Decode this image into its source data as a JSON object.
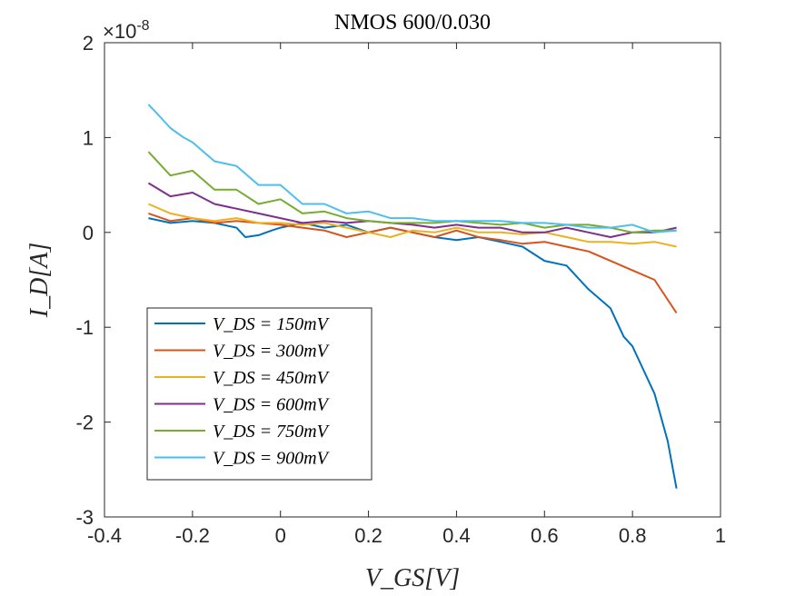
{
  "chart_data": {
    "type": "line",
    "title": "NMOS 600/0.030",
    "xlabel": "V_GS[V]",
    "ylabel": "I_D[A]",
    "xlim": [
      -0.4,
      1.0
    ],
    "ylim": [
      -3,
      2
    ],
    "y_exponent_label": "×10",
    "y_exponent_power": "-8",
    "x_ticks": [
      "-0.4",
      "-0.2",
      "0",
      "0.2",
      "0.4",
      "0.6",
      "0.8",
      "1"
    ],
    "y_ticks": [
      "-3",
      "-2",
      "-1",
      "0",
      "1",
      "2"
    ],
    "grid": false,
    "legend_position": "bottom-left",
    "series": [
      {
        "name": "V_DS = 150mV",
        "color": "#0072BD",
        "x": [
          -0.3,
          -0.25,
          -0.2,
          -0.15,
          -0.1,
          -0.08,
          -0.05,
          -0.02,
          0.0,
          0.05,
          0.1,
          0.15,
          0.2,
          0.25,
          0.3,
          0.35,
          0.4,
          0.45,
          0.5,
          0.55,
          0.6,
          0.65,
          0.7,
          0.75,
          0.78,
          0.8,
          0.82,
          0.85,
          0.88,
          0.9
        ],
        "y": [
          0.15,
          0.1,
          0.12,
          0.1,
          0.05,
          -0.05,
          -0.03,
          0.02,
          0.05,
          0.1,
          0.05,
          0.08,
          0.0,
          0.05,
          0.0,
          -0.05,
          -0.08,
          -0.05,
          -0.1,
          -0.15,
          -0.3,
          -0.35,
          -0.6,
          -0.8,
          -1.1,
          -1.2,
          -1.4,
          -1.7,
          -2.2,
          -2.7
        ]
      },
      {
        "name": "V_DS = 300mV",
        "color": "#D95319",
        "x": [
          -0.3,
          -0.25,
          -0.2,
          -0.15,
          -0.1,
          -0.05,
          0.0,
          0.05,
          0.1,
          0.15,
          0.2,
          0.25,
          0.3,
          0.35,
          0.4,
          0.45,
          0.5,
          0.55,
          0.6,
          0.65,
          0.7,
          0.75,
          0.8,
          0.85,
          0.9
        ],
        "y": [
          0.2,
          0.12,
          0.15,
          0.1,
          0.12,
          0.1,
          0.08,
          0.05,
          0.02,
          -0.05,
          0.0,
          0.05,
          0.0,
          -0.05,
          0.02,
          -0.05,
          -0.08,
          -0.12,
          -0.1,
          -0.15,
          -0.2,
          -0.3,
          -0.4,
          -0.5,
          -0.85
        ]
      },
      {
        "name": "V_DS = 450mV",
        "color": "#EDB120",
        "x": [
          -0.3,
          -0.25,
          -0.2,
          -0.15,
          -0.1,
          -0.05,
          0.0,
          0.05,
          0.1,
          0.15,
          0.2,
          0.25,
          0.3,
          0.35,
          0.4,
          0.45,
          0.5,
          0.55,
          0.6,
          0.65,
          0.7,
          0.75,
          0.8,
          0.85,
          0.9
        ],
        "y": [
          0.3,
          0.2,
          0.15,
          0.12,
          0.15,
          0.1,
          0.1,
          0.08,
          0.1,
          0.05,
          0.0,
          -0.05,
          0.02,
          0.0,
          0.05,
          0.0,
          0.0,
          -0.02,
          0.0,
          -0.05,
          -0.1,
          -0.1,
          -0.12,
          -0.1,
          -0.15
        ]
      },
      {
        "name": "V_DS = 600mV",
        "color": "#7E2F8E",
        "x": [
          -0.3,
          -0.25,
          -0.2,
          -0.15,
          -0.1,
          -0.05,
          0.0,
          0.05,
          0.1,
          0.15,
          0.2,
          0.25,
          0.3,
          0.35,
          0.4,
          0.45,
          0.5,
          0.55,
          0.6,
          0.65,
          0.7,
          0.75,
          0.8,
          0.85,
          0.9
        ],
        "y": [
          0.52,
          0.38,
          0.42,
          0.3,
          0.25,
          0.2,
          0.15,
          0.1,
          0.12,
          0.1,
          0.12,
          0.1,
          0.08,
          0.05,
          0.08,
          0.05,
          0.05,
          0.0,
          0.0,
          0.05,
          0.0,
          -0.05,
          0.0,
          0.0,
          0.05
        ]
      },
      {
        "name": "V_DS = 750mV",
        "color": "#77AC30",
        "x": [
          -0.3,
          -0.25,
          -0.2,
          -0.15,
          -0.1,
          -0.05,
          0.0,
          0.05,
          0.1,
          0.15,
          0.2,
          0.25,
          0.3,
          0.35,
          0.4,
          0.45,
          0.5,
          0.55,
          0.6,
          0.65,
          0.7,
          0.75,
          0.8,
          0.85,
          0.9
        ],
        "y": [
          0.85,
          0.6,
          0.65,
          0.45,
          0.45,
          0.3,
          0.35,
          0.2,
          0.22,
          0.15,
          0.12,
          0.1,
          0.1,
          0.1,
          0.12,
          0.1,
          0.08,
          0.1,
          0.05,
          0.08,
          0.08,
          0.05,
          0.0,
          0.02,
          0.02
        ]
      },
      {
        "name": "V_DS = 900mV",
        "color": "#4DBEEE",
        "x": [
          -0.3,
          -0.27,
          -0.25,
          -0.22,
          -0.2,
          -0.15,
          -0.1,
          -0.05,
          0.0,
          0.05,
          0.1,
          0.15,
          0.2,
          0.25,
          0.3,
          0.35,
          0.4,
          0.45,
          0.5,
          0.55,
          0.6,
          0.65,
          0.7,
          0.75,
          0.8,
          0.85,
          0.9
        ],
        "y": [
          1.35,
          1.2,
          1.1,
          1.0,
          0.95,
          0.75,
          0.7,
          0.5,
          0.5,
          0.3,
          0.3,
          0.2,
          0.22,
          0.15,
          0.15,
          0.12,
          0.12,
          0.12,
          0.12,
          0.1,
          0.1,
          0.08,
          0.05,
          0.05,
          0.08,
          0.0,
          0.02
        ]
      }
    ]
  }
}
